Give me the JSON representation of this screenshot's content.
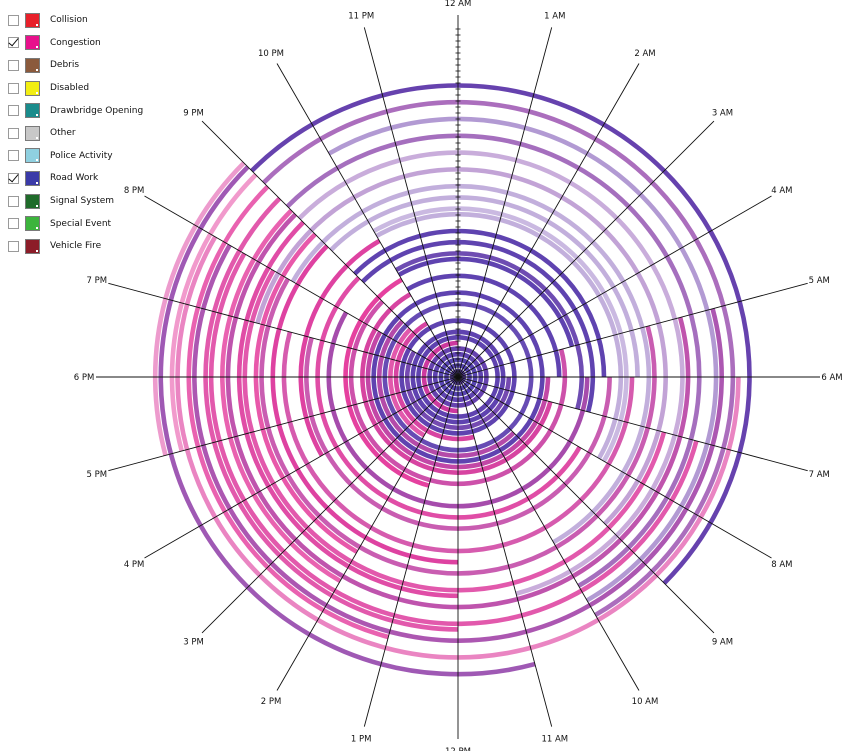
{
  "chart_data": {
    "type": "radial_spiral_timeline",
    "description_title": "",
    "legend": [
      {
        "label": "Collision",
        "color": "#e8202a",
        "checked": false
      },
      {
        "label": "Congestion",
        "color": "#e8118c",
        "checked": true
      },
      {
        "label": "Debris",
        "color": "#8b5a3c",
        "checked": false
      },
      {
        "label": "Disabled",
        "color": "#f2ee12",
        "checked": false
      },
      {
        "label": "Drawbridge Opening",
        "color": "#1a8c8c",
        "checked": false
      },
      {
        "label": "Other",
        "color": "#c8c8c8",
        "checked": false
      },
      {
        "label": "Police Activity",
        "color": "#8fd0e0",
        "checked": false
      },
      {
        "label": "Road Work",
        "color": "#3a3aa8",
        "checked": true
      },
      {
        "label": "Signal System",
        "color": "#1f6b2a",
        "checked": false
      },
      {
        "label": "Special Event",
        "color": "#3cb43c",
        "checked": false
      },
      {
        "label": "Vehicle Fire",
        "color": "#8c1c28",
        "checked": false
      }
    ],
    "hour_labels": [
      "12 AM",
      "1 AM",
      "2 AM",
      "3 AM",
      "4 AM",
      "5 AM",
      "6 AM",
      "7 AM",
      "8 AM",
      "9 AM",
      "10 AM",
      "11 AM",
      "12 PM",
      "1 PM",
      "2 PM",
      "3 PM",
      "4 PM",
      "5 PM",
      "6 PM",
      "7 PM",
      "8 PM",
      "9 PM",
      "10 PM",
      "11 PM"
    ],
    "rings": [
      {
        "ring": 1,
        "start_hour": 0,
        "end_hour": 24,
        "mix": 0.1,
        "alpha": 0.95
      },
      {
        "ring": 2,
        "start_hour": 0,
        "end_hour": 24,
        "mix": 0.05,
        "alpha": 0.95
      },
      {
        "ring": 3,
        "start_hour": 0,
        "end_hour": 24,
        "mix": 0.05,
        "alpha": 0.95
      },
      {
        "ring": 4,
        "start_hour": 0,
        "end_hour": 24,
        "mix": 0.1,
        "alpha": 0.95
      },
      {
        "ring": 5,
        "start_hour": 0,
        "end_hour": 24,
        "mix": 0.15,
        "alpha": 0.95
      },
      {
        "ring": 6,
        "start_hour": 12,
        "end_hour": 24,
        "mix": 0.8,
        "alpha": 0.9
      },
      {
        "ring": 7,
        "start_hour": 0,
        "end_hour": 24,
        "mix": 0.1,
        "alpha": 0.95
      },
      {
        "ring": 8,
        "start_hour": 0,
        "end_hour": 24,
        "mix": 0.1,
        "alpha": 0.95
      },
      {
        "ring": 9,
        "start_hour": 6,
        "end_hour": 20,
        "mix": 0.2,
        "alpha": 0.9
      },
      {
        "ring": 10,
        "start_hour": 0,
        "end_hour": 24,
        "mix": 0.1,
        "alpha": 0.95
      },
      {
        "ring": 11,
        "start_hour": 11,
        "end_hour": 22,
        "mix": 0.85,
        "alpha": 0.85
      },
      {
        "ring": 12,
        "start_hour": 14,
        "end_hour": 21,
        "mix": 0.9,
        "alpha": 0.75
      },
      {
        "ring": 13,
        "start_hour": 0,
        "end_hour": 24,
        "mix": 0.1,
        "alpha": 0.9
      },
      {
        "ring": 14,
        "start_hour": 9,
        "end_hour": 21,
        "mix": 0.6,
        "alpha": 0.85
      },
      {
        "ring": 15,
        "start_hour": 0,
        "end_hour": 24,
        "mix": 0.1,
        "alpha": 0.95
      },
      {
        "ring": 16,
        "start_hour": 6,
        "end_hour": 20,
        "mix": 0.7,
        "alpha": 0.85
      },
      {
        "ring": 17,
        "start_hour": 7,
        "end_hour": 22,
        "mix": 0.85,
        "alpha": 0.85
      },
      {
        "ring": 18,
        "start_hour": 22,
        "end_hour": 30,
        "mix": 0.1,
        "alpha": 0.95
      },
      {
        "ring": 19,
        "start_hour": 5,
        "end_hour": 21,
        "mix": 0.75,
        "alpha": 0.8
      },
      {
        "ring": 20,
        "start_hour": 13,
        "end_hour": 22,
        "mix": 0.95,
        "alpha": 0.85
      },
      {
        "ring": 21,
        "start_hour": 22,
        "end_hour": 29,
        "mix": 0.1,
        "alpha": 0.95
      },
      {
        "ring": 22,
        "start_hour": 22,
        "end_hour": 31,
        "mix": 0.15,
        "alpha": 0.9
      },
      {
        "ring": 23,
        "start_hour": 6,
        "end_hour": 20,
        "mix": 0.5,
        "alpha": 0.85
      },
      {
        "ring": 24,
        "start_hour": 21,
        "end_hour": 31,
        "mix": 0.1,
        "alpha": 0.95
      },
      {
        "ring": 25,
        "start_hour": 8,
        "end_hour": 21,
        "mix": 0.9,
        "alpha": 0.8
      },
      {
        "ring": 26,
        "start_hour": 21,
        "end_hour": 30,
        "mix": 0.1,
        "alpha": 0.95
      },
      {
        "ring": 27,
        "start_hour": 6,
        "end_hour": 19,
        "mix": 0.7,
        "alpha": 0.75
      },
      {
        "ring": 28,
        "start_hour": 16,
        "end_hour": 22,
        "mix": 0.9,
        "alpha": 0.85
      },
      {
        "ring": 29,
        "start_hour": 22,
        "end_hour": 32,
        "mix": 0.2,
        "alpha": 0.4
      },
      {
        "ring": 30,
        "start_hour": 22,
        "end_hour": 32,
        "mix": 0.2,
        "alpha": 0.35
      },
      {
        "ring": 31,
        "start_hour": 6,
        "end_hour": 19,
        "mix": 0.8,
        "alpha": 0.75
      },
      {
        "ring": 32,
        "start_hour": 21,
        "end_hour": 30,
        "mix": 0.2,
        "alpha": 0.4
      },
      {
        "ring": 33,
        "start_hour": 12,
        "end_hour": 21,
        "mix": 0.9,
        "alpha": 0.85
      },
      {
        "ring": 34,
        "start_hour": 20,
        "end_hour": 34,
        "mix": 0.2,
        "alpha": 0.4
      },
      {
        "ring": 35,
        "start_hour": 5,
        "end_hour": 20,
        "mix": 0.7,
        "alpha": 0.75
      },
      {
        "ring": 36,
        "start_hour": 14,
        "end_hour": 21,
        "mix": 0.95,
        "alpha": 0.75
      },
      {
        "ring": 37,
        "start_hour": 19,
        "end_hour": 33,
        "mix": 0.3,
        "alpha": 0.45
      },
      {
        "ring": 38,
        "start_hour": 7,
        "end_hour": 20,
        "mix": 0.9,
        "alpha": 0.75
      },
      {
        "ring": 39,
        "start_hour": 12,
        "end_hour": 21,
        "mix": 0.9,
        "alpha": 0.8
      },
      {
        "ring": 40,
        "start_hour": 21,
        "end_hour": 35,
        "mix": 0.3,
        "alpha": 0.4
      },
      {
        "ring": 41,
        "start_hour": 5,
        "end_hour": 21,
        "mix": 0.65,
        "alpha": 0.8
      },
      {
        "ring": 42,
        "start_hour": 14,
        "end_hour": 21,
        "mix": 0.95,
        "alpha": 0.7
      },
      {
        "ring": 43,
        "start_hour": 21,
        "end_hour": 34,
        "mix": 0.35,
        "alpha": 0.7
      },
      {
        "ring": 44,
        "start_hour": 7,
        "end_hour": 20,
        "mix": 0.9,
        "alpha": 0.75
      },
      {
        "ring": 45,
        "start_hour": 12,
        "end_hour": 21,
        "mix": 0.9,
        "alpha": 0.75
      },
      {
        "ring": 46,
        "start_hour": 22,
        "end_hour": 34,
        "mix": 0.2,
        "alpha": 0.5
      },
      {
        "ring": 47,
        "start_hour": 5,
        "end_hour": 20,
        "mix": 0.5,
        "alpha": 0.8
      },
      {
        "ring": 48,
        "start_hour": 13,
        "end_hour": 21,
        "mix": 0.95,
        "alpha": 0.7
      },
      {
        "ring": 49,
        "start_hour": 21,
        "end_hour": 34,
        "mix": 0.4,
        "alpha": 0.7
      },
      {
        "ring": 50,
        "start_hour": 6,
        "end_hour": 20,
        "mix": 0.9,
        "alpha": 0.55
      },
      {
        "ring": 51,
        "start_hour": 17,
        "end_hour": 21,
        "mix": 0.95,
        "alpha": 0.45
      },
      {
        "ring": 52,
        "start_hour": 21,
        "end_hour": 33,
        "mix": 0.15,
        "alpha": 0.95
      },
      {
        "ring": 53,
        "start_hour": 11,
        "end_hour": 21,
        "mix": 0.4,
        "alpha": 0.8
      },
      {
        "ring": 54,
        "start_hour": 17,
        "end_hour": 21,
        "mix": 0.9,
        "alpha": 0.45
      }
    ]
  }
}
